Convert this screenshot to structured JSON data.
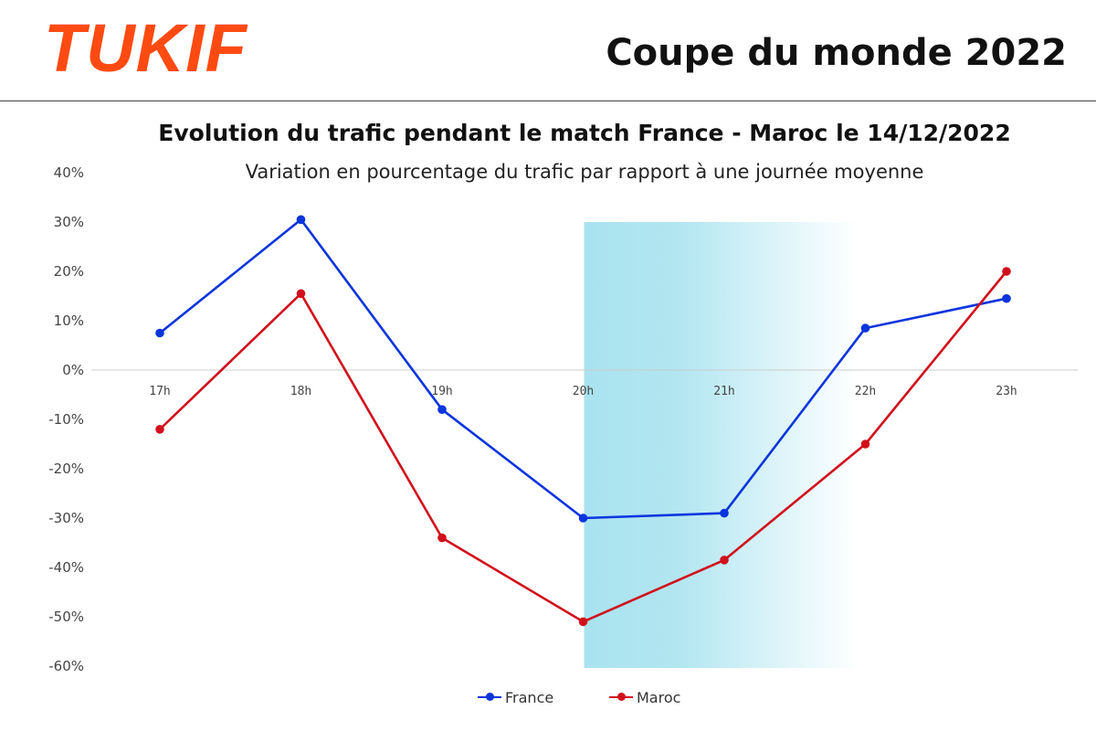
{
  "header": {
    "logo": "TUKIF",
    "title": "Coupe du monde 2022"
  },
  "colors": {
    "logo": "#ff4a12",
    "france": "#0b35dd",
    "maroc": "#d1101c",
    "highlight": "#a9e3ef"
  },
  "chart_data": {
    "type": "line",
    "title": "Evolution du trafic pendant le match France - Maroc le 14/12/2022",
    "subtitle": "Variation en pourcentage du trafic par rapport à une journée moyenne",
    "categories": [
      "17h",
      "18h",
      "19h",
      "20h",
      "21h",
      "22h",
      "23h"
    ],
    "series": [
      {
        "name": "France",
        "values": [
          7.5,
          30.5,
          -8,
          -30,
          -29,
          8.5,
          14.5
        ]
      },
      {
        "name": "Maroc",
        "values": [
          -12,
          15.5,
          -34,
          -51,
          -38.5,
          -15,
          20
        ]
      }
    ],
    "yticks": [
      "40%",
      "30%",
      "20%",
      "10%",
      "0%",
      "-10%",
      "-20%",
      "-30%",
      "-40%",
      "-50%",
      "-60%"
    ],
    "ylim": [
      -60,
      40
    ],
    "highlight_range": [
      "20h",
      "22h"
    ],
    "legend_position": "bottom",
    "grid": false
  }
}
